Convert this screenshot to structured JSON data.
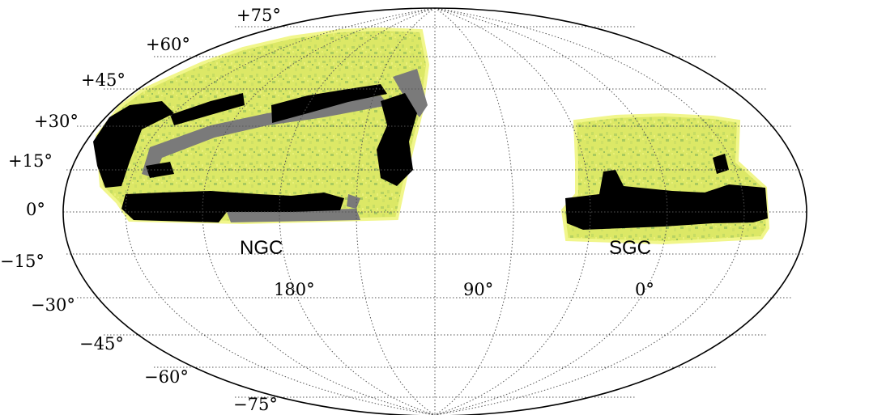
{
  "projection": "mollweide",
  "latitude_labels": [
    "+75°",
    "+60°",
    "+45°",
    "+30°",
    "+15°",
    "0°",
    "−15°",
    "−30°",
    "−45°",
    "−60°",
    "−75°"
  ],
  "longitude_labels": [
    "180°",
    "90°",
    "0°"
  ],
  "regions": [
    {
      "name": "NGC"
    },
    {
      "name": "SGC"
    }
  ],
  "colors": {
    "footprint_yellow": "#e3ec6d",
    "footprint_green": "#a9ca5f",
    "footprint_edge": "#f1f68b",
    "masked_black": "#000000",
    "masked_gray": "#7a7a7a",
    "grid": "#555555"
  }
}
